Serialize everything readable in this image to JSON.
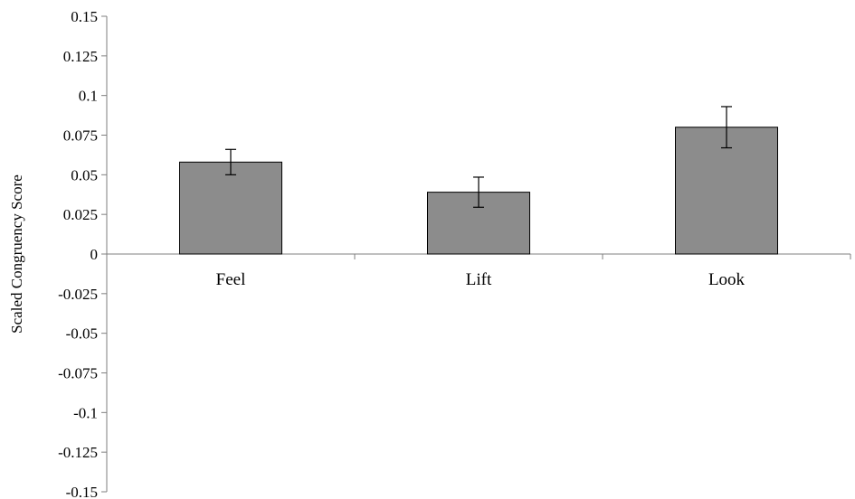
{
  "chart_data": {
    "type": "bar",
    "title": "",
    "xlabel": "",
    "ylabel": "Scaled Congruency Score",
    "categories": [
      "Feel",
      "Lift",
      "Look"
    ],
    "values": [
      0.058,
      0.039,
      0.08
    ],
    "error": [
      0.008,
      0.0095,
      0.013
    ],
    "ylim": [
      -0.15,
      0.15
    ],
    "yticks": [
      0.15,
      0.125,
      0.1,
      0.075,
      0.05,
      0.025,
      0,
      -0.025,
      -0.05,
      -0.075,
      -0.1,
      -0.125,
      -0.15
    ],
    "ytick_labels": [
      "0.15",
      "0.125",
      "0.1",
      "0.075",
      "0.05",
      "0.025",
      "0",
      "-0.025",
      "-0.05",
      "-0.075",
      "-0.1",
      "-0.125",
      "-0.15"
    ],
    "grid": false,
    "legend": "none",
    "bar_color": "#8c8c8c",
    "bar_edge_color": "#000000"
  }
}
